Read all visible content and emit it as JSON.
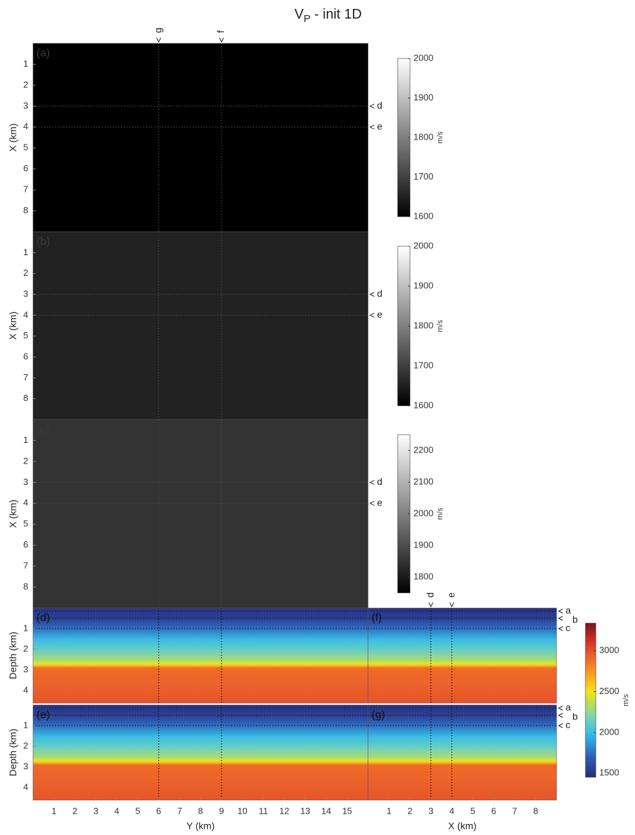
{
  "figure": {
    "title": "V",
    "title_subscript": "P",
    "title_rest": " - init 1D"
  },
  "chart_data": [
    {
      "type": "map",
      "label": "(a)",
      "value": 1600,
      "xlim": [
        0,
        16
      ],
      "ylim": [
        0,
        9
      ],
      "yticks": [
        1,
        2,
        3,
        4,
        5,
        6,
        7,
        8
      ],
      "ylabel": "X (km)",
      "vlines": [
        6,
        9
      ],
      "vline_labels": [
        "g",
        "f"
      ],
      "hlines": [
        3,
        4
      ],
      "hline_labels": [
        "d",
        "e"
      ],
      "clim": [
        1600,
        2000
      ],
      "cticks": [
        1600,
        1700,
        1800,
        1900,
        2000
      ],
      "clabel": "m/s"
    },
    {
      "type": "map",
      "label": "(b)",
      "value": 1653,
      "xlim": [
        0,
        16
      ],
      "ylim": [
        0,
        9
      ],
      "yticks": [
        1,
        2,
        3,
        4,
        5,
        6,
        7,
        8
      ],
      "ylabel": "X (km)",
      "vlines": [
        6,
        9
      ],
      "hlines": [
        3,
        4
      ],
      "hline_labels": [
        "d",
        "e"
      ],
      "clim": [
        1600,
        2000
      ],
      "cticks": [
        1600,
        1700,
        1800,
        1900,
        2000
      ],
      "clabel": "m/s"
    },
    {
      "type": "map",
      "label": "(c)",
      "value": 1850,
      "xlim": [
        0,
        16
      ],
      "ylim": [
        0,
        9
      ],
      "yticks": [
        1,
        2,
        3,
        4,
        5,
        6,
        7,
        8
      ],
      "ylabel": "X (km)",
      "vlines": [
        6,
        9
      ],
      "hlines": [
        3,
        4
      ],
      "hline_labels": [
        "d",
        "e"
      ],
      "clim": [
        1750,
        2250
      ],
      "cticks": [
        1800,
        1900,
        2000,
        2100,
        2200
      ],
      "clabel": "m/s"
    },
    {
      "type": "section",
      "label": "(d)",
      "xlim": [
        0,
        16
      ],
      "ylim": [
        0,
        4.6
      ],
      "yticks": [
        1,
        2,
        3,
        4
      ],
      "ylabel": "Depth (km)",
      "vlines": [
        6,
        9
      ],
      "hlines": [
        0.15,
        0.5,
        1.0
      ]
    },
    {
      "type": "section",
      "label": "(e)",
      "xlim": [
        0,
        16
      ],
      "ylim": [
        0,
        4.6
      ],
      "yticks": [
        1,
        2,
        3,
        4
      ],
      "ylabel": "Depth (km)",
      "xticks": [
        1,
        2,
        3,
        4,
        5,
        6,
        7,
        8,
        9,
        10,
        11,
        12,
        13,
        14,
        15
      ],
      "xlabel": "Y (km)",
      "vlines": [
        6,
        9
      ],
      "hlines": [
        0.15,
        0.5,
        1.0
      ]
    },
    {
      "type": "section",
      "label": "(f)",
      "xlim": [
        0,
        9
      ],
      "ylim": [
        0,
        4.6
      ],
      "vlines": [
        3,
        4
      ],
      "vline_labels": [
        "d",
        "e"
      ],
      "hlines": [
        0.15,
        0.5,
        1.0
      ],
      "hline_labels": [
        "a",
        "b",
        "c"
      ]
    },
    {
      "type": "section",
      "label": "(g)",
      "xlim": [
        0,
        9
      ],
      "ylim": [
        0,
        4.6
      ],
      "xticks": [
        1,
        2,
        3,
        4,
        5,
        6,
        7,
        8
      ],
      "xlabel": "X (km)",
      "vlines": [
        3,
        4
      ],
      "hlines": [
        0.15,
        0.5,
        1.0
      ],
      "hline_labels": [
        "a",
        "b",
        "c"
      ]
    },
    {
      "type": "model",
      "depth": [
        0,
        0.5,
        1.0,
        1.5,
        2.0,
        2.5,
        2.7,
        2.8,
        2.9,
        3.5,
        4.6
      ],
      "velocity": [
        1500,
        1550,
        1750,
        1980,
        2120,
        2300,
        2480,
        2650,
        2900,
        2920,
        2980
      ],
      "clim": [
        1450,
        3340
      ],
      "cticks": [
        1500,
        2000,
        2500,
        3000
      ],
      "clabel": "m/s",
      "colormap": {
        "values": [
          1450,
          1700,
          1900,
          2000,
          2200,
          2400,
          2500,
          2700,
          2900,
          3100,
          3340
        ],
        "colors": [
          "#282a7a",
          "#2f5fb8",
          "#2fa3e0",
          "#3cc0e8",
          "#7fd6b0",
          "#c8e040",
          "#f5e31a",
          "#f7a520",
          "#ee6a2a",
          "#d8342a",
          "#7a1515"
        ]
      }
    }
  ]
}
